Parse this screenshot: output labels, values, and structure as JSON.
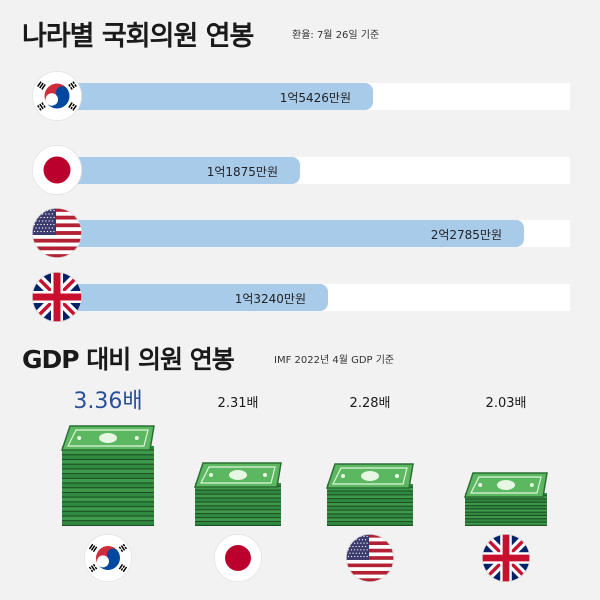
{
  "section1": {
    "title": "나라별 국회의원 연봉",
    "note": "환율: 7월 26일 기준"
  },
  "section2": {
    "title": "GDP 대비 의원 연봉",
    "note": "IMF 2022년 4월 GDP 기준"
  },
  "colors": {
    "bar": "#a9cbea",
    "track": "#ffffff",
    "highlight": "#2a4f9a",
    "money": "#2e8b3e"
  },
  "chart_data": [
    {
      "type": "bar",
      "orientation": "horizontal",
      "categories": [
        "korea-flag",
        "japan-flag",
        "usa-flag",
        "uk-flag"
      ],
      "values": [
        154260000,
        118750000,
        227850000,
        132400000
      ],
      "value_labels": [
        "1억5426만원",
        "1억1875만원",
        "2억2785만원",
        "1억3240만원"
      ],
      "unit": "원"
    },
    {
      "type": "bar",
      "categories": [
        "korea-flag",
        "japan-flag",
        "usa-flag",
        "uk-flag"
      ],
      "values": [
        3.36,
        2.31,
        2.28,
        2.03
      ],
      "value_labels": [
        "3.36배",
        "2.31배",
        "2.28배",
        "2.03배"
      ],
      "unit": "배"
    }
  ]
}
